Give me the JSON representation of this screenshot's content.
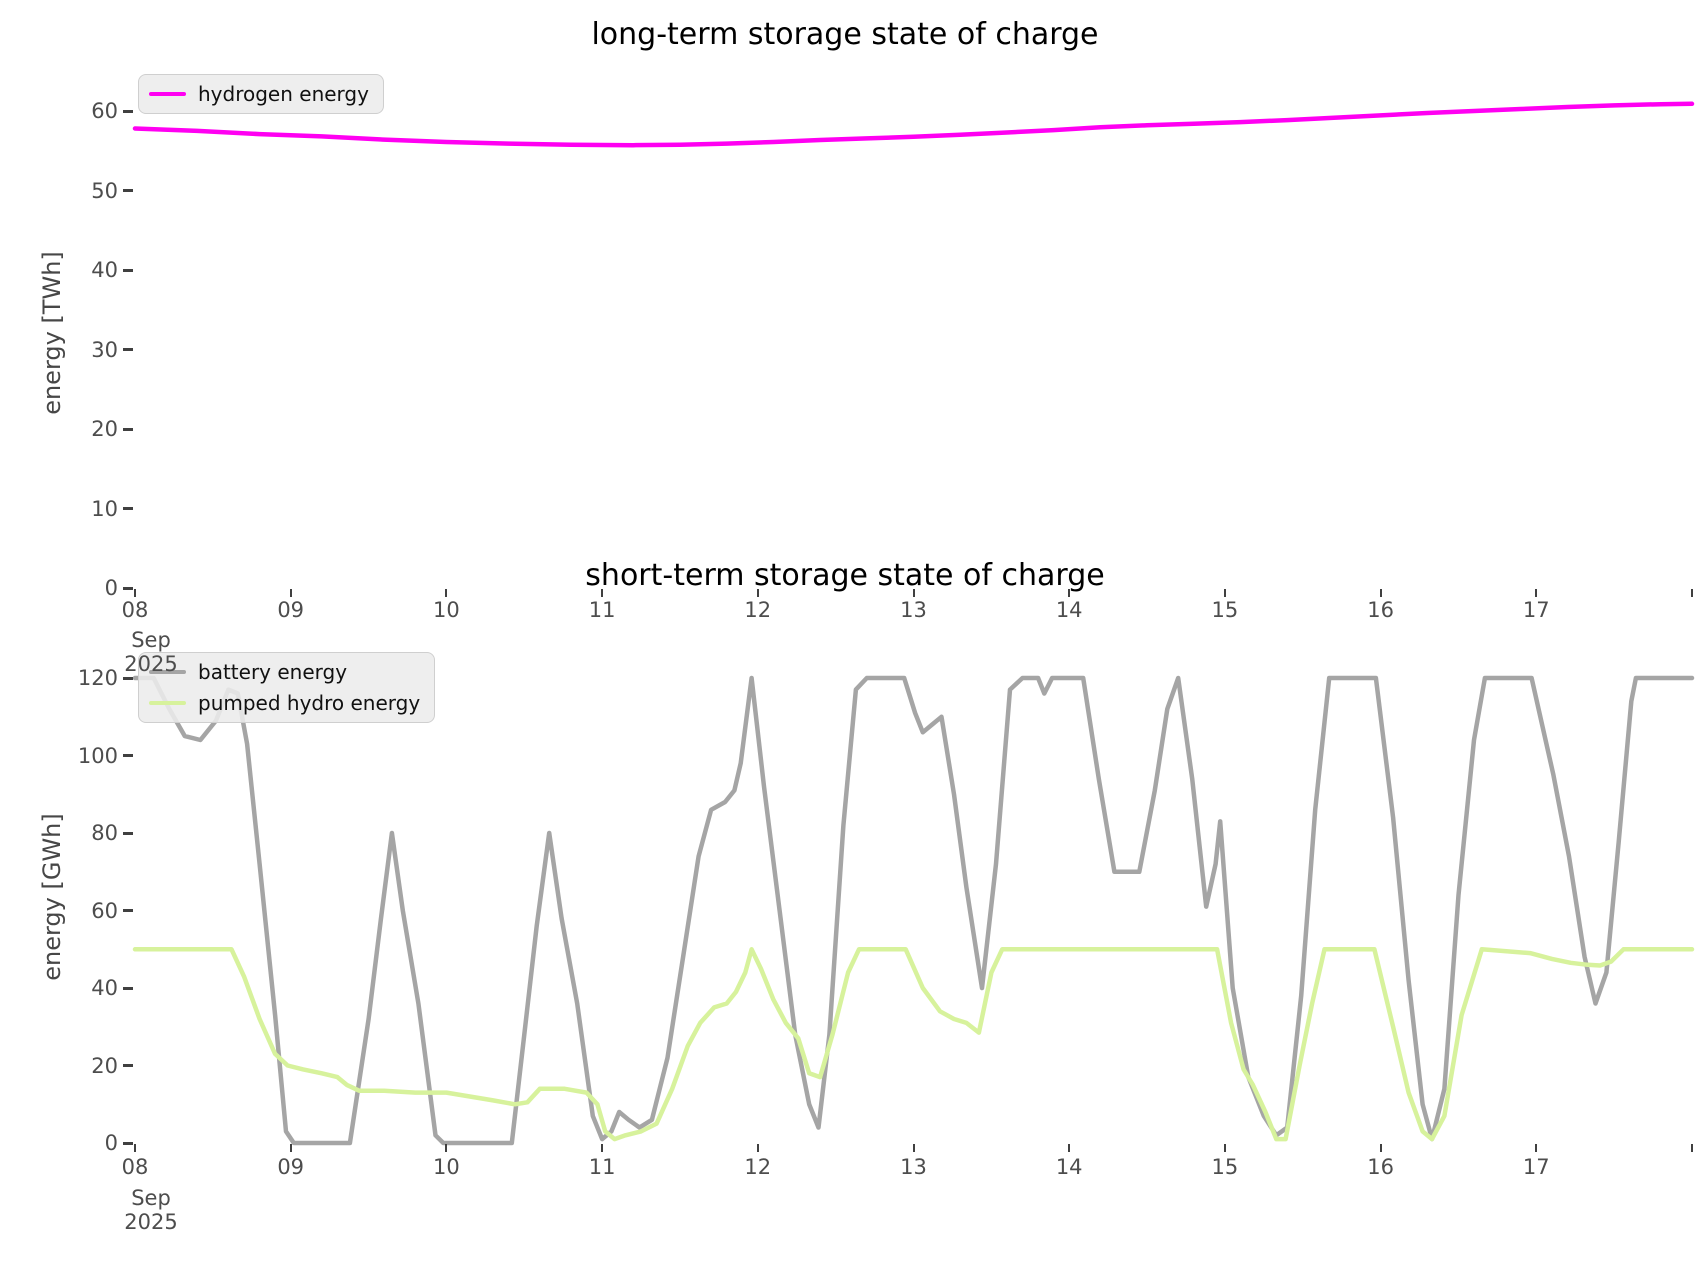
{
  "figure": {
    "background": "#ffffff",
    "text_color": "#4d4d4d",
    "title_color": "#000000"
  },
  "chart_data": [
    {
      "type": "line",
      "title": "long-term storage state of charge",
      "ylabel": "energy [TWh]",
      "x_axis": {
        "tick_labels": [
          "08",
          "09",
          "10",
          "11",
          "12",
          "13",
          "14",
          "15",
          "16",
          "17",
          ""
        ],
        "sub_labels": [
          "Sep",
          "2025"
        ],
        "range_days": [
          8,
          18
        ]
      },
      "yticks": [
        0,
        10,
        20,
        30,
        40,
        50,
        60
      ],
      "ylim": [
        0,
        64.5
      ],
      "grid": false,
      "legend_position": "upper-left",
      "series": [
        {
          "name": "hydrogen energy",
          "color": "#ff00f2",
          "points": [
            [
              8.0,
              57.8
            ],
            [
              8.4,
              57.5
            ],
            [
              8.8,
              57.1
            ],
            [
              9.2,
              56.8
            ],
            [
              9.6,
              56.4
            ],
            [
              10.0,
              56.1
            ],
            [
              10.4,
              55.9
            ],
            [
              10.8,
              55.75
            ],
            [
              11.2,
              55.7
            ],
            [
              11.5,
              55.75
            ],
            [
              11.8,
              55.9
            ],
            [
              12.1,
              56.1
            ],
            [
              12.4,
              56.35
            ],
            [
              12.7,
              56.55
            ],
            [
              13.0,
              56.75
            ],
            [
              13.3,
              57.0
            ],
            [
              13.6,
              57.3
            ],
            [
              13.9,
              57.6
            ],
            [
              14.2,
              57.95
            ],
            [
              14.5,
              58.2
            ],
            [
              14.8,
              58.4
            ],
            [
              15.1,
              58.6
            ],
            [
              15.4,
              58.85
            ],
            [
              15.7,
              59.15
            ],
            [
              16.0,
              59.45
            ],
            [
              16.3,
              59.75
            ],
            [
              16.6,
              60.0
            ],
            [
              16.9,
              60.25
            ],
            [
              17.2,
              60.5
            ],
            [
              17.5,
              60.7
            ],
            [
              17.8,
              60.85
            ],
            [
              18.0,
              60.9
            ]
          ]
        }
      ]
    },
    {
      "type": "line",
      "title": "short-term storage state of charge",
      "ylabel": "energy [GWh]",
      "x_axis": {
        "tick_labels": [
          "08",
          "09",
          "10",
          "11",
          "12",
          "13",
          "14",
          "15",
          "16",
          "17",
          ""
        ],
        "sub_labels": [
          "Sep",
          "2025"
        ],
        "range_days": [
          8,
          18
        ]
      },
      "yticks": [
        0,
        20,
        40,
        60,
        80,
        100,
        120
      ],
      "ylim": [
        0,
        126
      ],
      "grid": false,
      "legend_position": "upper-left",
      "series": [
        {
          "name": "battery energy",
          "color": "#a5a5a5",
          "points": [
            [
              8.0,
              120
            ],
            [
              8.12,
              120
            ],
            [
              8.22,
              112
            ],
            [
              8.32,
              105
            ],
            [
              8.42,
              104
            ],
            [
              8.52,
              109
            ],
            [
              8.6,
              117
            ],
            [
              8.66,
              116
            ],
            [
              8.72,
              103
            ],
            [
              8.8,
              72
            ],
            [
              8.9,
              33
            ],
            [
              8.97,
              3
            ],
            [
              9.02,
              0
            ],
            [
              9.38,
              0
            ],
            [
              9.5,
              32
            ],
            [
              9.58,
              58
            ],
            [
              9.65,
              80
            ],
            [
              9.72,
              60
            ],
            [
              9.82,
              36
            ],
            [
              9.93,
              2
            ],
            [
              9.98,
              0
            ],
            [
              10.42,
              0
            ],
            [
              10.5,
              28
            ],
            [
              10.58,
              56
            ],
            [
              10.66,
              80
            ],
            [
              10.74,
              58
            ],
            [
              10.84,
              36
            ],
            [
              10.94,
              7
            ],
            [
              11.0,
              1
            ],
            [
              11.06,
              3
            ],
            [
              11.11,
              8
            ],
            [
              11.17,
              6
            ],
            [
              11.24,
              4
            ],
            [
              11.32,
              6
            ],
            [
              11.42,
              22
            ],
            [
              11.52,
              48
            ],
            [
              11.62,
              74
            ],
            [
              11.7,
              86
            ],
            [
              11.79,
              88
            ],
            [
              11.85,
              91
            ],
            [
              11.89,
              98
            ],
            [
              11.96,
              120
            ],
            [
              12.04,
              92
            ],
            [
              12.14,
              60
            ],
            [
              12.24,
              28
            ],
            [
              12.33,
              10
            ],
            [
              12.39,
              4
            ],
            [
              12.46,
              28
            ],
            [
              12.55,
              82
            ],
            [
              12.63,
              117
            ],
            [
              12.7,
              120
            ],
            [
              12.94,
              120
            ],
            [
              13.01,
              111
            ],
            [
              13.06,
              106
            ],
            [
              13.12,
              108
            ],
            [
              13.18,
              110
            ],
            [
              13.26,
              90
            ],
            [
              13.34,
              66
            ],
            [
              13.44,
              40
            ],
            [
              13.53,
              72
            ],
            [
              13.62,
              117
            ],
            [
              13.7,
              120
            ],
            [
              13.8,
              120
            ],
            [
              13.84,
              116
            ],
            [
              13.89,
              120
            ],
            [
              14.09,
              120
            ],
            [
              14.19,
              94
            ],
            [
              14.29,
              70
            ],
            [
              14.45,
              70
            ],
            [
              14.55,
              91
            ],
            [
              14.63,
              112
            ],
            [
              14.7,
              120
            ],
            [
              14.79,
              94
            ],
            [
              14.88,
              61
            ],
            [
              14.94,
              72
            ],
            [
              14.97,
              83
            ],
            [
              15.05,
              40
            ],
            [
              15.15,
              17
            ],
            [
              15.25,
              7
            ],
            [
              15.33,
              2
            ],
            [
              15.4,
              4
            ],
            [
              15.49,
              38
            ],
            [
              15.58,
              86
            ],
            [
              15.67,
              120
            ],
            [
              15.97,
              120
            ],
            [
              16.08,
              84
            ],
            [
              16.18,
              42
            ],
            [
              16.27,
              10
            ],
            [
              16.33,
              1
            ],
            [
              16.41,
              14
            ],
            [
              16.5,
              64
            ],
            [
              16.6,
              104
            ],
            [
              16.67,
              120
            ],
            [
              16.97,
              120
            ],
            [
              17.11,
              95
            ],
            [
              17.21,
              74
            ],
            [
              17.31,
              48
            ],
            [
              17.38,
              36
            ],
            [
              17.45,
              44
            ],
            [
              17.53,
              78
            ],
            [
              17.61,
              114
            ],
            [
              17.64,
              120
            ],
            [
              18.0,
              120
            ]
          ]
        },
        {
          "name": "pumped hydro energy",
          "color": "#d7f29c",
          "points": [
            [
              8.0,
              50
            ],
            [
              8.62,
              50
            ],
            [
              8.7,
              43
            ],
            [
              8.8,
              32
            ],
            [
              8.9,
              23
            ],
            [
              8.98,
              20
            ],
            [
              9.08,
              19
            ],
            [
              9.2,
              18
            ],
            [
              9.3,
              17
            ],
            [
              9.36,
              15
            ],
            [
              9.44,
              13.5
            ],
            [
              9.6,
              13.5
            ],
            [
              9.8,
              13
            ],
            [
              10.0,
              13
            ],
            [
              10.15,
              12
            ],
            [
              10.3,
              11
            ],
            [
              10.44,
              10
            ],
            [
              10.52,
              10.5
            ],
            [
              10.6,
              14
            ],
            [
              10.76,
              14
            ],
            [
              10.9,
              13
            ],
            [
              10.97,
              10
            ],
            [
              11.02,
              3
            ],
            [
              11.08,
              1
            ],
            [
              11.15,
              2
            ],
            [
              11.25,
              3
            ],
            [
              11.35,
              5
            ],
            [
              11.45,
              14
            ],
            [
              11.55,
              25
            ],
            [
              11.63,
              31
            ],
            [
              11.72,
              35
            ],
            [
              11.8,
              36
            ],
            [
              11.86,
              39
            ],
            [
              11.92,
              44
            ],
            [
              11.96,
              50
            ],
            [
              12.02,
              45
            ],
            [
              12.1,
              37
            ],
            [
              12.18,
              31
            ],
            [
              12.26,
              27
            ],
            [
              12.33,
              18
            ],
            [
              12.4,
              17
            ],
            [
              12.48,
              28
            ],
            [
              12.58,
              44
            ],
            [
              12.65,
              50
            ],
            [
              12.95,
              50
            ],
            [
              13.06,
              40
            ],
            [
              13.17,
              34
            ],
            [
              13.26,
              32
            ],
            [
              13.34,
              31
            ],
            [
              13.42,
              28.5
            ],
            [
              13.5,
              44
            ],
            [
              13.57,
              50
            ],
            [
              14.95,
              50
            ],
            [
              15.04,
              31
            ],
            [
              15.12,
              19
            ],
            [
              15.18,
              15
            ],
            [
              15.26,
              8
            ],
            [
              15.33,
              1
            ],
            [
              15.39,
              1
            ],
            [
              15.48,
              20
            ],
            [
              15.56,
              36
            ],
            [
              15.64,
              50
            ],
            [
              15.96,
              50
            ],
            [
              16.08,
              30
            ],
            [
              16.18,
              13
            ],
            [
              16.27,
              3
            ],
            [
              16.33,
              1
            ],
            [
              16.41,
              7
            ],
            [
              16.52,
              33
            ],
            [
              16.65,
              50
            ],
            [
              16.96,
              49
            ],
            [
              17.1,
              47.5
            ],
            [
              17.22,
              46.5
            ],
            [
              17.33,
              46
            ],
            [
              17.41,
              45.8
            ],
            [
              17.48,
              46.8
            ],
            [
              17.56,
              50
            ],
            [
              18.0,
              50
            ]
          ]
        }
      ]
    }
  ]
}
